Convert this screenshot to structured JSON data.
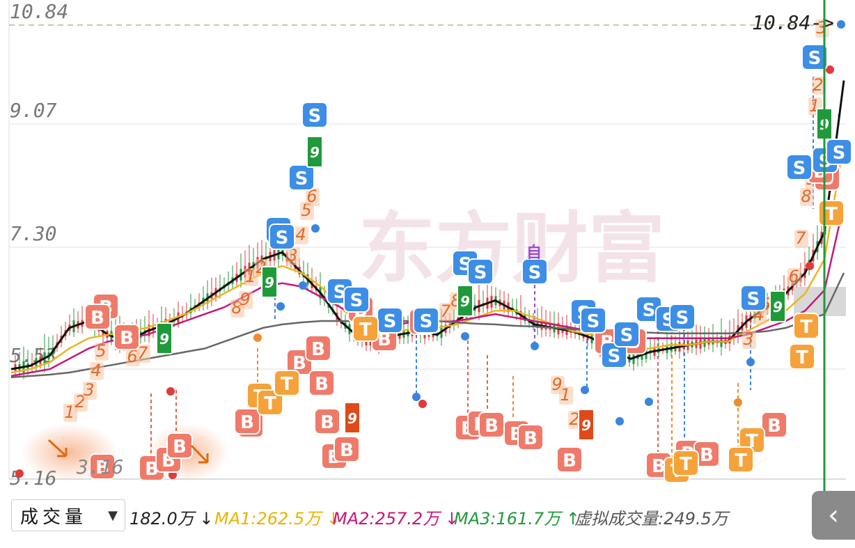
{
  "chart_data": {
    "type": "candlestick",
    "y_ticks": [
      "10.84",
      "9.07",
      "7.30",
      "5.53",
      "5.16"
    ],
    "ylim": [
      5.16,
      10.84
    ],
    "current_price_tag": "10.84->",
    "grid": true,
    "overlay_label": "3.16",
    "watermark": "东方财富",
    "signal_letters": [
      "B",
      "S",
      "T"
    ],
    "counter_labels": [
      "1",
      "2",
      "3",
      "4",
      "5",
      "6",
      "7",
      "8",
      "9"
    ],
    "callout_label": "自",
    "series": [
      {
        "name": "MA-black",
        "color": "#111111",
        "values": [
          5.3,
          5.35,
          5.5,
          5.9,
          6.0,
          5.8,
          5.7,
          5.85,
          5.95,
          6.1,
          6.3,
          6.5,
          6.7,
          6.9,
          7.0,
          6.7,
          6.4,
          6.0,
          5.75,
          5.7,
          5.8,
          5.85,
          5.8,
          6.0,
          6.2,
          6.3,
          6.15,
          5.95,
          5.9,
          5.85,
          5.75,
          5.55,
          5.45,
          5.55,
          5.6,
          5.65,
          5.7,
          5.7,
          6.0,
          6.2,
          6.4,
          6.7,
          7.3,
          9.5
        ]
      },
      {
        "name": "MA-yellow",
        "color": "#f0b31e",
        "values": [
          5.25,
          5.3,
          5.4,
          5.6,
          5.75,
          5.8,
          5.85,
          5.9,
          6.0,
          6.1,
          6.25,
          6.4,
          6.55,
          6.7,
          6.8,
          6.7,
          6.5,
          6.2,
          5.95,
          5.85,
          5.85,
          5.9,
          5.9,
          5.95,
          6.05,
          6.15,
          6.15,
          6.05,
          5.95,
          5.85,
          5.8,
          5.7,
          5.6,
          5.6,
          5.65,
          5.65,
          5.7,
          5.7,
          5.85,
          6.0,
          6.15,
          6.4,
          6.9,
          8.6
        ]
      },
      {
        "name": "MA-magenta",
        "color": "#c8167a",
        "values": [
          5.2,
          5.25,
          5.3,
          5.45,
          5.6,
          5.7,
          5.75,
          5.8,
          5.9,
          6.0,
          6.1,
          6.2,
          6.35,
          6.5,
          6.55,
          6.5,
          6.35,
          6.2,
          6.05,
          5.95,
          5.95,
          6.0,
          6.0,
          6.0,
          6.05,
          6.1,
          6.05,
          6.0,
          5.95,
          5.9,
          5.85,
          5.8,
          5.75,
          5.75,
          5.75,
          5.75,
          5.75,
          5.75,
          5.8,
          5.9,
          6.0,
          6.15,
          6.45,
          7.7
        ]
      },
      {
        "name": "MA-gray",
        "color": "#666666",
        "values": [
          5.18,
          5.2,
          5.22,
          5.25,
          5.3,
          5.35,
          5.4,
          5.45,
          5.5,
          5.55,
          5.6,
          5.7,
          5.8,
          5.9,
          5.95,
          5.98,
          6.0,
          6.0,
          6.0,
          6.0,
          6.0,
          6.0,
          6.0,
          5.98,
          5.96,
          5.95,
          5.93,
          5.92,
          5.9,
          5.88,
          5.86,
          5.85,
          5.84,
          5.83,
          5.82,
          5.82,
          5.82,
          5.82,
          5.83,
          5.85,
          5.9,
          6.0,
          6.1,
          6.7
        ]
      }
    ]
  },
  "volume_bar": {
    "selector_label": "成交量",
    "selector_caret": "▼",
    "items": [
      {
        "text": "182.0万 ↓",
        "color": "#222222"
      },
      {
        "text": "MA1:262.5万 ↓",
        "color": "#e8b400"
      },
      {
        "text": "MA2:257.2万 ↓",
        "color": "#c8167a"
      },
      {
        "text": "MA3:161.7万 ↑",
        "color": "#1f9a3a"
      },
      {
        "text": "虚拟成交量:249.5万",
        "color": "#555555"
      }
    ],
    "collapse_icon": "‹"
  }
}
